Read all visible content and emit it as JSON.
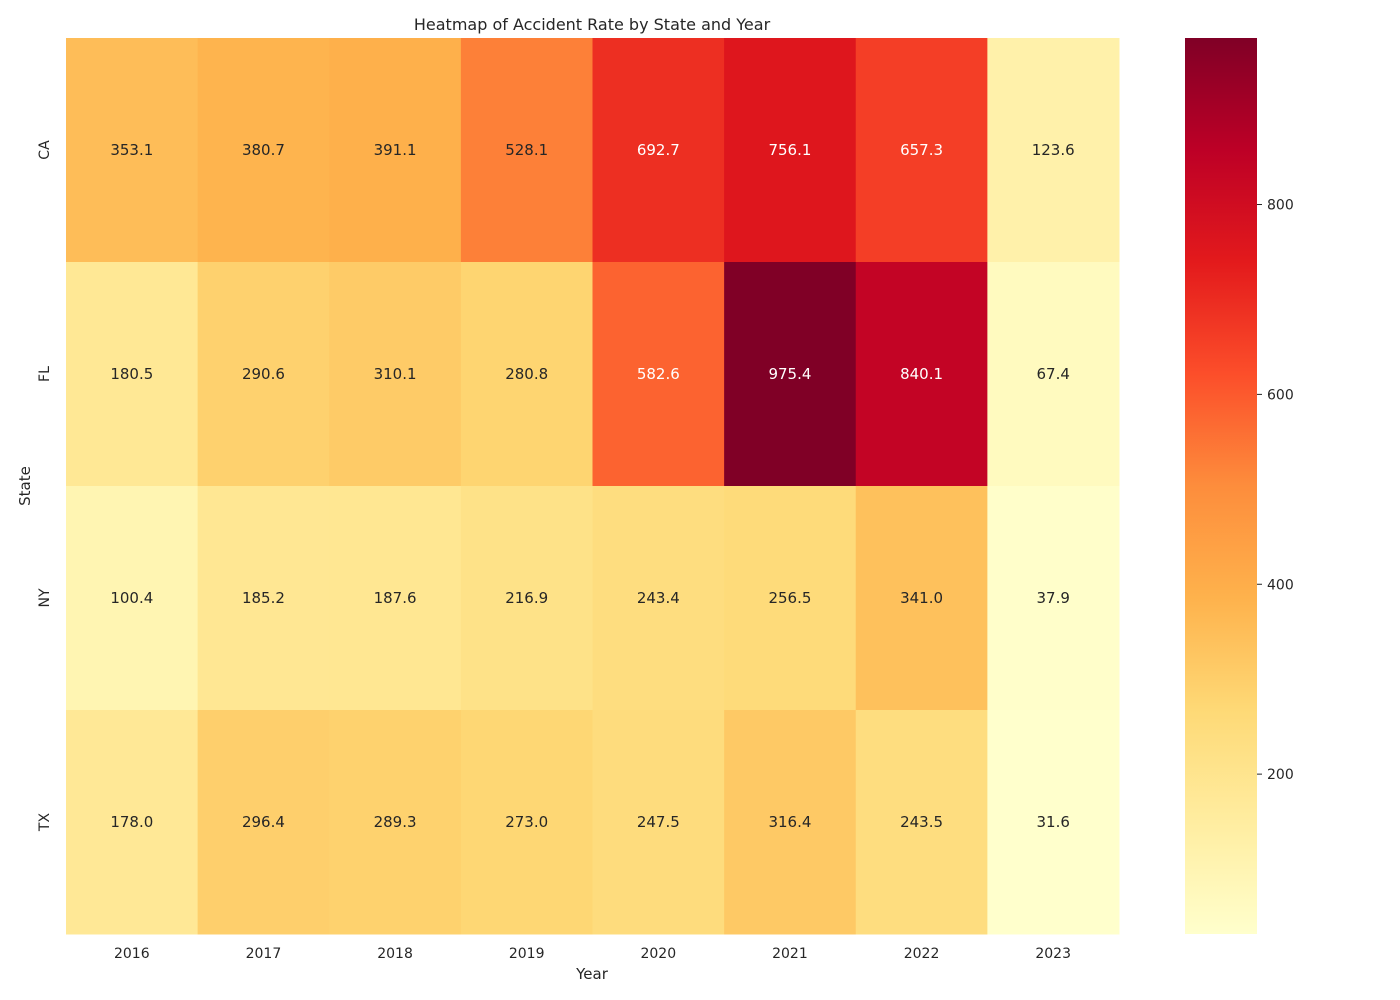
{
  "chart_data": {
    "type": "heatmap",
    "title": "Heatmap of Accident Rate by State and Year",
    "xlabel": "Year",
    "ylabel": "State",
    "x_categories": [
      "2016",
      "2017",
      "2018",
      "2019",
      "2020",
      "2021",
      "2022",
      "2023"
    ],
    "y_categories": [
      "CA",
      "FL",
      "NY",
      "TX"
    ],
    "values": [
      [
        353.1,
        380.7,
        391.1,
        528.1,
        692.7,
        756.1,
        657.3,
        123.6
      ],
      [
        180.5,
        290.6,
        310.1,
        280.8,
        582.6,
        975.4,
        840.1,
        67.4
      ],
      [
        100.4,
        185.2,
        187.6,
        216.9,
        243.4,
        256.5,
        341.0,
        37.9
      ],
      [
        178.0,
        296.4,
        289.3,
        273.0,
        247.5,
        316.4,
        243.5,
        31.6
      ]
    ],
    "value_format": "0.1f",
    "colormap": "YlOrRd",
    "colorbar": {
      "ticks": [
        "200",
        "400",
        "600",
        "800"
      ]
    },
    "color_range": [
      31.6,
      975.4
    ],
    "grid": false,
    "legend": "colorbar-right"
  }
}
